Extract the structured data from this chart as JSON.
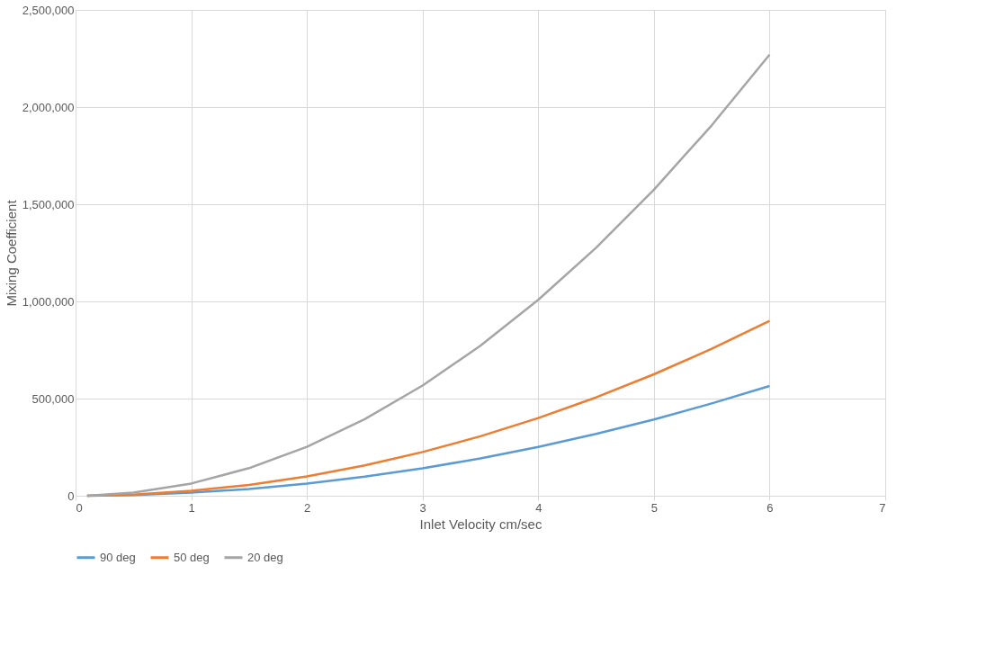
{
  "chart_data": {
    "type": "line",
    "xlabel": "Inlet Velocity cm/sec",
    "ylabel": "Mixing Coefficient",
    "x": [
      0.1,
      0.5,
      1,
      1.5,
      2,
      2.5,
      3,
      3.5,
      4,
      4.5,
      5,
      5.5,
      6
    ],
    "series": [
      {
        "name": "90 deg",
        "color": "#5b9bd5",
        "values": [
          0,
          4000,
          16000,
          35000,
          63000,
          98000,
          141000,
          192000,
          251000,
          318000,
          392000,
          475000,
          565000
        ]
      },
      {
        "name": "50 deg",
        "color": "#ed7d31",
        "values": [
          0,
          6000,
          25000,
          56000,
          100000,
          156000,
          225000,
          306000,
          400000,
          506000,
          625000,
          756000,
          900000
        ]
      },
      {
        "name": "20 deg",
        "color": "#a5a5a5",
        "values": [
          0,
          16000,
          63000,
          142000,
          252000,
          394000,
          567000,
          772000,
          1008000,
          1276000,
          1575000,
          1906000,
          2270000
        ]
      }
    ],
    "xlim": [
      0,
      7
    ],
    "xticks": [
      0,
      1,
      2,
      3,
      4,
      5,
      6,
      7
    ],
    "ylim": [
      0,
      2500000
    ],
    "yticks": [
      0,
      {
        "value": 500000,
        "label": "500,000"
      },
      {
        "value": 1000000,
        "label": "1,000,000"
      },
      {
        "value": 1500000,
        "label": "1,500,000"
      },
      {
        "value": 2000000,
        "label": "2,000,000"
      },
      {
        "value": 2500000,
        "label": "2,500,000"
      }
    ],
    "grid": true,
    "legend": "bottom",
    "marker": "none",
    "line_style": "solid"
  }
}
